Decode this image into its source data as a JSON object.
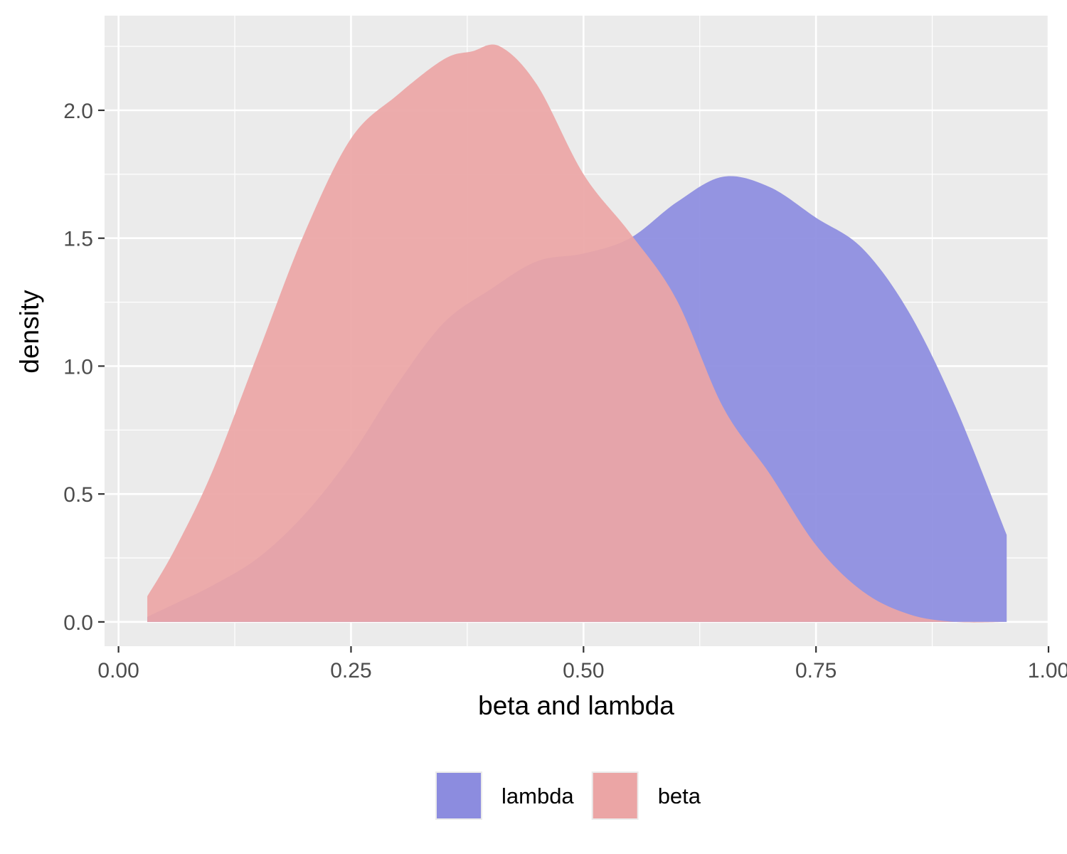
{
  "chart_data": {
    "type": "area",
    "xlabel": "beta and lambda",
    "ylabel": "density",
    "xlim": [
      -0.015,
      1.0
    ],
    "ylim": [
      -0.095,
      2.37
    ],
    "x_ticks": [
      0,
      0.25,
      0.5,
      0.75,
      1.0
    ],
    "x_tick_labels": [
      "0.00",
      "0.25",
      "0.50",
      "0.75",
      "1.00"
    ],
    "y_ticks": [
      0,
      0.5,
      1.0,
      1.5,
      2.0
    ],
    "y_tick_labels": [
      "0.0",
      "0.5",
      "1.0",
      "1.5",
      "2.0"
    ],
    "grid": true,
    "legend_position": "bottom",
    "series": [
      {
        "name": "lambda",
        "color": "#8c8cdf",
        "x": [
          0.031,
          0.06,
          0.1,
          0.15,
          0.2,
          0.25,
          0.3,
          0.35,
          0.4,
          0.45,
          0.5,
          0.55,
          0.6,
          0.65,
          0.7,
          0.75,
          0.8,
          0.85,
          0.9,
          0.955
        ],
        "y": [
          0.02,
          0.07,
          0.14,
          0.25,
          0.42,
          0.65,
          0.93,
          1.17,
          1.3,
          1.41,
          1.44,
          1.5,
          1.64,
          1.74,
          1.7,
          1.58,
          1.46,
          1.21,
          0.84,
          0.34
        ]
      },
      {
        "name": "beta",
        "color": "#eba5a5",
        "x": [
          0.031,
          0.06,
          0.1,
          0.15,
          0.2,
          0.25,
          0.3,
          0.35,
          0.38,
          0.41,
          0.45,
          0.5,
          0.55,
          0.6,
          0.65,
          0.7,
          0.75,
          0.8,
          0.85,
          0.9,
          0.955
        ],
        "y": [
          0.1,
          0.28,
          0.58,
          1.05,
          1.52,
          1.89,
          2.06,
          2.2,
          2.23,
          2.25,
          2.1,
          1.75,
          1.52,
          1.26,
          0.84,
          0.58,
          0.3,
          0.12,
          0.03,
          0.0,
          0.0
        ]
      }
    ]
  }
}
